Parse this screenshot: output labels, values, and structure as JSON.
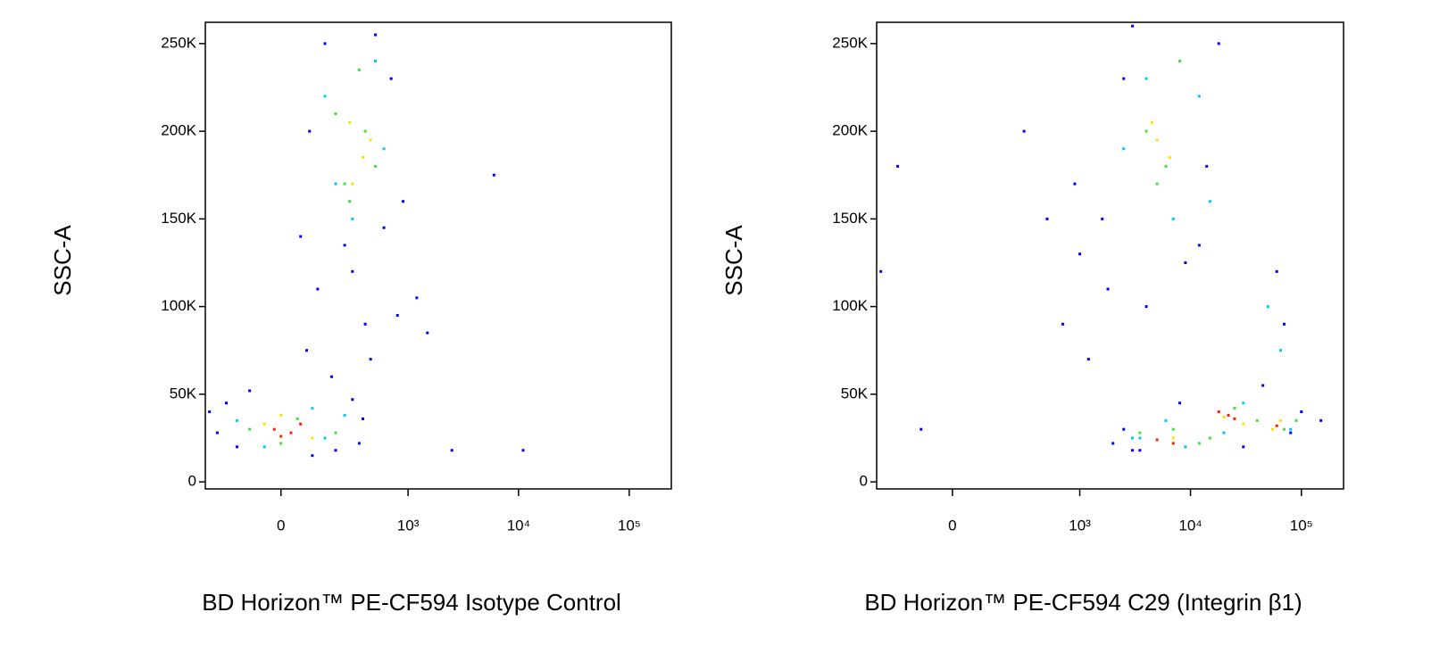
{
  "chart_data": [
    {
      "type": "scatter",
      "x_label": "BD Horizon™ PE-CF594 Isotype Control",
      "y_label": "SSC-A",
      "xscale": "biexponential",
      "xlim": [
        -330,
        240000
      ],
      "ylim": [
        -4000,
        262144
      ],
      "xticks": [
        0,
        {
          "value": 1000,
          "label": "10³"
        },
        {
          "value": 10000,
          "label": "10⁴"
        },
        {
          "value": 100000,
          "label": "10⁵"
        }
      ],
      "yticks": [
        0,
        {
          "value": 50000,
          "label": "50K"
        },
        {
          "value": 100000,
          "label": "100K"
        },
        {
          "value": 150000,
          "label": "150K"
        },
        {
          "value": 200000,
          "label": "200K"
        },
        {
          "value": 250000,
          "label": "250K"
        }
      ],
      "series": [
        {
          "color": "#0000ff",
          "x": [
            -250,
            -150,
            -300,
            200,
            380,
            -200,
            100,
            350,
            -100,
            300,
            60,
            150,
            500,
            900,
            250,
            700,
            1200,
            400,
            120,
            80,
            90,
            600,
            1500,
            2500,
            6000,
            11000,
            180,
            300,
            800,
            450
          ],
          "values": [
            28000,
            20000,
            40000,
            18000,
            36000,
            45000,
            15000,
            22000,
            52000,
            47000,
            140000,
            250000,
            255000,
            160000,
            135000,
            230000,
            105000,
            90000,
            110000,
            75000,
            200000,
            145000,
            85000,
            18000,
            175000,
            18000,
            60000,
            120000,
            95000,
            70000
          ]
        },
        {
          "color": "#00c8ff",
          "x": [
            -150,
            150,
            -50,
            250,
            100,
            200,
            600,
            150,
            300,
            500
          ],
          "values": [
            35000,
            25000,
            20000,
            38000,
            42000,
            170000,
            190000,
            220000,
            150000,
            240000
          ]
        },
        {
          "color": "#40e040",
          "x": [
            -100,
            50,
            200,
            0,
            280,
            400,
            200,
            500,
            350,
            250
          ],
          "values": [
            30000,
            36000,
            28000,
            22000,
            160000,
            200000,
            210000,
            180000,
            235000,
            170000
          ]
        },
        {
          "color": "#ffe000",
          "x": [
            -50,
            100,
            0,
            380,
            300,
            450,
            280
          ],
          "values": [
            33000,
            25000,
            38000,
            185000,
            170000,
            195000,
            205000
          ]
        },
        {
          "color": "#ff2000",
          "x": [
            -20,
            30,
            60,
            0
          ],
          "values": [
            30000,
            28000,
            33000,
            26000
          ]
        }
      ]
    },
    {
      "type": "scatter",
      "x_label": "BD Horizon™ PE-CF594 C29 (Integrin β1)",
      "y_label": "SSC-A",
      "xscale": "biexponential",
      "xlim": [
        -330,
        240000
      ],
      "ylim": [
        -4000,
        262144
      ],
      "xticks": [
        0,
        {
          "value": 1000,
          "label": "10³"
        },
        {
          "value": 10000,
          "label": "10⁴"
        },
        {
          "value": 100000,
          "label": "10⁵"
        }
      ],
      "yticks": [
        0,
        {
          "value": 50000,
          "label": "50K"
        },
        {
          "value": 100000,
          "label": "100K"
        },
        {
          "value": 150000,
          "label": "150K"
        },
        {
          "value": 200000,
          "label": "200K"
        },
        {
          "value": 250000,
          "label": "250K"
        }
      ],
      "series": [
        {
          "color": "#0000ff",
          "x": [
            1600,
            2500,
            18000,
            14000,
            1800,
            3000,
            9000,
            12000,
            300,
            -200,
            500,
            700,
            1000,
            -300,
            2000,
            2500,
            3000,
            8000,
            60000,
            70000,
            80000,
            45000,
            100000,
            -100,
            3500,
            1200,
            900,
            4000,
            150000,
            30000
          ],
          "values": [
            150000,
            230000,
            250000,
            180000,
            110000,
            260000,
            125000,
            135000,
            200000,
            180000,
            150000,
            90000,
            130000,
            120000,
            22000,
            30000,
            18000,
            45000,
            120000,
            90000,
            28000,
            55000,
            40000,
            30000,
            18000,
            70000,
            170000,
            100000,
            35000,
            20000
          ]
        },
        {
          "color": "#00c8ff",
          "x": [
            2500,
            4000,
            12000,
            15000,
            3000,
            9000,
            6000,
            7000,
            50000,
            65000,
            30000,
            80000,
            3500,
            20000
          ],
          "values": [
            190000,
            230000,
            220000,
            160000,
            25000,
            20000,
            35000,
            150000,
            100000,
            75000,
            45000,
            30000,
            25000,
            28000
          ]
        },
        {
          "color": "#40e040",
          "x": [
            4000,
            6000,
            8000,
            5000,
            12000,
            3500,
            7000,
            40000,
            70000,
            25000,
            90000,
            15000
          ],
          "values": [
            200000,
            180000,
            240000,
            170000,
            22000,
            28000,
            30000,
            35000,
            30000,
            42000,
            35000,
            25000
          ]
        },
        {
          "color": "#ffe000",
          "x": [
            5000,
            6500,
            4500,
            7000,
            20000,
            55000,
            65000,
            30000
          ],
          "values": [
            195000,
            185000,
            205000,
            25000,
            37000,
            30000,
            35000,
            33000
          ]
        },
        {
          "color": "#ff2000",
          "x": [
            5000,
            7000,
            18000,
            22000,
            25000,
            60000
          ],
          "values": [
            24000,
            22000,
            40000,
            38000,
            36000,
            32000
          ]
        }
      ]
    }
  ]
}
